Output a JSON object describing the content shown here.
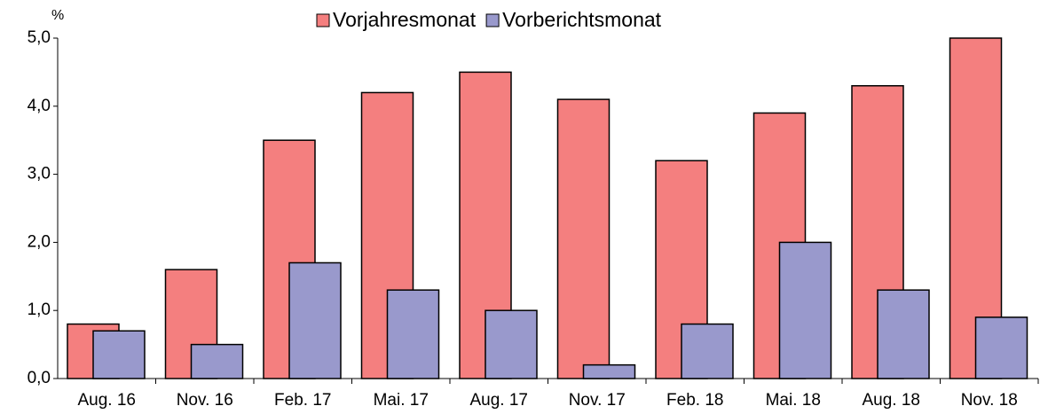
{
  "chart_data": {
    "type": "bar",
    "y_label": "%",
    "categories": [
      "Aug. 16",
      "Nov. 16",
      "Feb. 17",
      "Mai. 17",
      "Aug. 17",
      "Nov. 17",
      "Feb. 18",
      "Mai. 18",
      "Aug. 18",
      "Nov. 18"
    ],
    "series": [
      {
        "name": "Vorjahresmonat",
        "color": "#f47f7f",
        "values": [
          0.8,
          1.6,
          3.5,
          4.2,
          4.5,
          4.1,
          3.2,
          3.9,
          4.3,
          5.0
        ]
      },
      {
        "name": "Vorberichtsmonat",
        "color": "#9999cc",
        "values": [
          0.7,
          0.5,
          1.7,
          1.3,
          1.0,
          0.2,
          0.8,
          2.0,
          1.3,
          0.9
        ]
      }
    ],
    "ylim": [
      0,
      5
    ],
    "yticks": [
      {
        "value": 0,
        "label": "0,0"
      },
      {
        "value": 1,
        "label": "1,0"
      },
      {
        "value": 2,
        "label": "2,0"
      },
      {
        "value": 3,
        "label": "3,0"
      },
      {
        "value": 4,
        "label": "4,0"
      },
      {
        "value": 5,
        "label": "5,0"
      }
    ],
    "legend": "top"
  }
}
